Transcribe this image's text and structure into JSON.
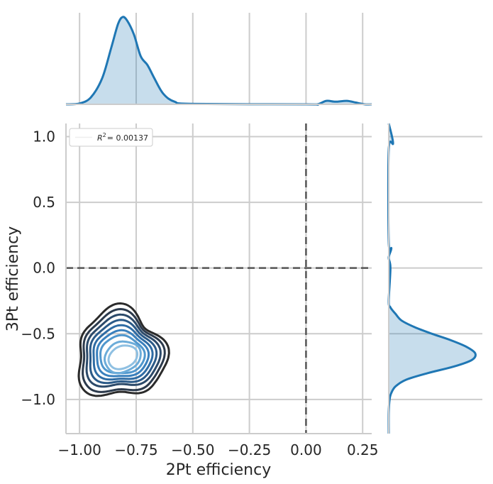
{
  "chart_data": {
    "type": "jointplot-kde",
    "xlabel": "2Pt efficiency",
    "ylabel": "3Pt efficiency",
    "xlim": [
      -1.06,
      0.29
    ],
    "ylim": [
      -1.26,
      1.1
    ],
    "x_ticks": [
      "−1.00",
      "−0.75",
      "−0.50",
      "−0.25",
      "0.00",
      "0.25"
    ],
    "y_ticks": [
      "−1.0",
      "−0.5",
      "0.0",
      "0.5",
      "1.0"
    ],
    "x_tick_values": [
      -1.0,
      -0.75,
      -0.5,
      -0.25,
      0.0,
      0.25
    ],
    "y_tick_values": [
      -1.0,
      -0.5,
      0.0,
      0.5,
      1.0
    ],
    "reference_lines": {
      "x": 0.0,
      "y": 0.0,
      "style": "dashed"
    },
    "legend": {
      "r2_label": "R",
      "r2_exponent": "2",
      "r2_value": "= 0.00137",
      "placement": "top-left"
    },
    "grid": true,
    "series_color": "#1f77b4",
    "contour_colors": [
      "#2b2b2b",
      "#2c3a4c",
      "#2c4a6a",
      "#2b5a88",
      "#2f6ca4",
      "#3a80bd",
      "#5097cd",
      "#6cacd9",
      "#8fc0e2"
    ],
    "kde_center": [
      -0.81,
      -0.67
    ],
    "marginal_x_density": [
      {
        "x": -1.06,
        "y": 0.0
      },
      {
        "x": -1.0,
        "y": 0.01
      },
      {
        "x": -0.95,
        "y": 0.08
      },
      {
        "x": -0.9,
        "y": 0.3
      },
      {
        "x": -0.86,
        "y": 0.65
      },
      {
        "x": -0.83,
        "y": 0.92
      },
      {
        "x": -0.81,
        "y": 1.0
      },
      {
        "x": -0.79,
        "y": 0.96
      },
      {
        "x": -0.76,
        "y": 0.8
      },
      {
        "x": -0.73,
        "y": 0.55
      },
      {
        "x": -0.7,
        "y": 0.45
      },
      {
        "x": -0.67,
        "y": 0.3
      },
      {
        "x": -0.63,
        "y": 0.12
      },
      {
        "x": -0.58,
        "y": 0.03
      },
      {
        "x": -0.5,
        "y": 0.005
      },
      {
        "x": 0.0,
        "y": 0.0
      },
      {
        "x": 0.05,
        "y": 0.0
      },
      {
        "x": 0.09,
        "y": 0.04
      },
      {
        "x": 0.13,
        "y": 0.03
      },
      {
        "x": 0.18,
        "y": 0.04
      },
      {
        "x": 0.22,
        "y": 0.02
      },
      {
        "x": 0.26,
        "y": 0.0
      },
      {
        "x": 0.29,
        "y": 0.0
      }
    ],
    "marginal_y_density": [
      {
        "y": 1.1,
        "d": 0.0
      },
      {
        "y": 0.95,
        "d": 0.05
      },
      {
        "y": 0.9,
        "d": 0.0
      },
      {
        "y": 0.2,
        "d": 0.0
      },
      {
        "y": 0.15,
        "d": 0.03
      },
      {
        "y": 0.08,
        "d": 0.0
      },
      {
        "y": 0.0,
        "d": 0.02
      },
      {
        "y": -0.25,
        "d": 0.0
      },
      {
        "y": -0.3,
        "d": 0.02
      },
      {
        "y": -0.35,
        "d": 0.08
      },
      {
        "y": -0.4,
        "d": 0.15
      },
      {
        "y": -0.45,
        "d": 0.3
      },
      {
        "y": -0.5,
        "d": 0.5
      },
      {
        "y": -0.55,
        "d": 0.72
      },
      {
        "y": -0.6,
        "d": 0.9
      },
      {
        "y": -0.65,
        "d": 1.0
      },
      {
        "y": -0.7,
        "d": 0.96
      },
      {
        "y": -0.75,
        "d": 0.75
      },
      {
        "y": -0.8,
        "d": 0.45
      },
      {
        "y": -0.85,
        "d": 0.2
      },
      {
        "y": -0.9,
        "d": 0.08
      },
      {
        "y": -0.95,
        "d": 0.03
      },
      {
        "y": -1.0,
        "d": 0.01
      },
      {
        "y": -1.1,
        "d": 0.0
      },
      {
        "y": -1.26,
        "d": 0.0
      }
    ]
  }
}
